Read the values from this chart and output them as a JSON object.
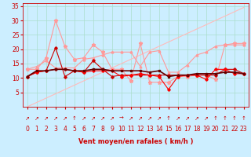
{
  "x": [
    0,
    1,
    2,
    3,
    4,
    5,
    6,
    7,
    8,
    9,
    10,
    11,
    12,
    13,
    14,
    15,
    16,
    17,
    18,
    19,
    20,
    21,
    22,
    23
  ],
  "series": [
    {
      "y": [
        10.5,
        12.0,
        12.5,
        20.5,
        10.5,
        12.5,
        12.0,
        16.0,
        13.0,
        10.5,
        11.0,
        11.0,
        11.0,
        11.0,
        11.0,
        11.0,
        11.0,
        11.0,
        11.0,
        11.0,
        11.0,
        13.0,
        13.0,
        11.5
      ],
      "color": "#cc0000",
      "linewidth": 0.8,
      "marker": "D",
      "markersize": 1.8,
      "zorder": 5
    },
    {
      "y": [
        13.0,
        13.0,
        17.0,
        30.0,
        21.0,
        16.5,
        17.0,
        21.5,
        19.0,
        13.0,
        13.0,
        9.0,
        22.0,
        8.5,
        8.5,
        8.5,
        10.5,
        10.5,
        11.0,
        11.0,
        9.5,
        21.5,
        22.0,
        22.0
      ],
      "color": "#ff9999",
      "linewidth": 0.8,
      "marker": "*",
      "markersize": 3.5,
      "zorder": 4
    },
    {
      "y": [
        13.0,
        14.0,
        16.0,
        13.5,
        13.5,
        13.5,
        16.5,
        17.0,
        18.0,
        19.0,
        19.0,
        19.0,
        14.0,
        19.0,
        19.5,
        12.0,
        12.0,
        14.5,
        18.0,
        19.0,
        21.0,
        21.5,
        21.5,
        21.5
      ],
      "color": "#ff9999",
      "linewidth": 0.8,
      "marker": "^",
      "markersize": 2.0,
      "zorder": 3
    },
    {
      "y": [
        10.5,
        12.0,
        12.5,
        13.0,
        13.0,
        12.5,
        12.0,
        12.5,
        12.5,
        12.5,
        10.5,
        11.0,
        11.5,
        11.0,
        10.5,
        6.0,
        10.5,
        11.0,
        11.0,
        9.5,
        13.0,
        13.0,
        11.5,
        11.5
      ],
      "color": "#ff0000",
      "linewidth": 0.8,
      "marker": "D",
      "markersize": 1.8,
      "zorder": 5
    },
    {
      "y": [
        10.5,
        12.5,
        12.5,
        13.0,
        13.0,
        12.5,
        12.5,
        13.0,
        13.0,
        12.5,
        12.5,
        12.5,
        12.5,
        12.0,
        12.5,
        10.5,
        11.0,
        11.0,
        11.5,
        11.5,
        11.5,
        12.0,
        12.0,
        11.5
      ],
      "color": "#660000",
      "linewidth": 1.2,
      "marker": "s",
      "markersize": 1.5,
      "zorder": 6
    },
    {
      "y": [
        0.0,
        1.5,
        3.0,
        4.5,
        6.0,
        7.5,
        9.0,
        10.5,
        12.0,
        13.5,
        15.0,
        16.5,
        18.0,
        19.5,
        21.0,
        22.5,
        24.0,
        25.5,
        27.0,
        28.5,
        30.0,
        31.5,
        33.0,
        34.5
      ],
      "color": "#ffbbbb",
      "linewidth": 0.8,
      "marker": null,
      "markersize": 0,
      "zorder": 2
    }
  ],
  "xlabel": "Vent moyen/en rafales ( km/h )",
  "xlim": [
    -0.5,
    23.5
  ],
  "ylim": [
    0,
    36
  ],
  "yticks": [
    5,
    10,
    15,
    20,
    25,
    30,
    35
  ],
  "xticks": [
    0,
    1,
    2,
    3,
    4,
    5,
    6,
    7,
    8,
    9,
    10,
    11,
    12,
    13,
    14,
    15,
    16,
    17,
    18,
    19,
    20,
    21,
    22,
    23
  ],
  "background_color": "#cceeff",
  "grid_color": "#aaddcc",
  "tick_color": "#cc0000",
  "xlabel_color": "#cc0000",
  "xlabel_fontsize": 6,
  "tick_fontsize": 5.5,
  "arrow_fontsize": 5,
  "wind_arrows": [
    "↗",
    "↗",
    "↗",
    "↗",
    "↗",
    "↑",
    "↗",
    "↗",
    "↗",
    "↗",
    "→",
    "↗",
    "↗",
    "↗",
    "↗",
    "↑",
    "↗",
    "↗",
    "↗",
    "↗",
    "↑",
    "↑",
    "↑",
    "↑"
  ]
}
